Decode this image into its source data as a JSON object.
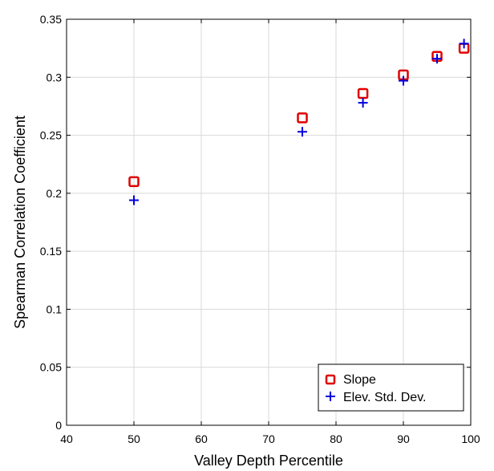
{
  "chart_data": {
    "type": "scatter",
    "xlabel": "Valley Depth Percentile",
    "ylabel": "Spearman Correlation Coefficient",
    "xlim": [
      40,
      100
    ],
    "ylim": [
      0,
      0.35
    ],
    "xticks": [
      40,
      50,
      60,
      70,
      80,
      90,
      100
    ],
    "yticks": [
      0,
      0.05,
      0.1,
      0.15,
      0.2,
      0.25,
      0.3,
      0.35
    ],
    "xtick_labels": [
      "40",
      "50",
      "60",
      "70",
      "80",
      "90",
      "100"
    ],
    "ytick_labels": [
      "0",
      "0.05",
      "0.1",
      "0.15",
      "0.2",
      "0.25",
      "0.3",
      "0.35"
    ],
    "grid": true,
    "legend_position": "bottom-right",
    "series": [
      {
        "name": "Slope",
        "marker": "square",
        "color": "#e00000",
        "x": [
          50,
          75,
          84,
          90,
          95,
          99
        ],
        "y": [
          0.21,
          0.265,
          0.286,
          0.302,
          0.318,
          0.325
        ]
      },
      {
        "name": "Elev. Std. Dev.",
        "marker": "plus",
        "color": "#0000e0",
        "x": [
          50,
          75,
          84,
          90,
          95,
          99
        ],
        "y": [
          0.194,
          0.253,
          0.278,
          0.297,
          0.316,
          0.329
        ]
      }
    ]
  }
}
